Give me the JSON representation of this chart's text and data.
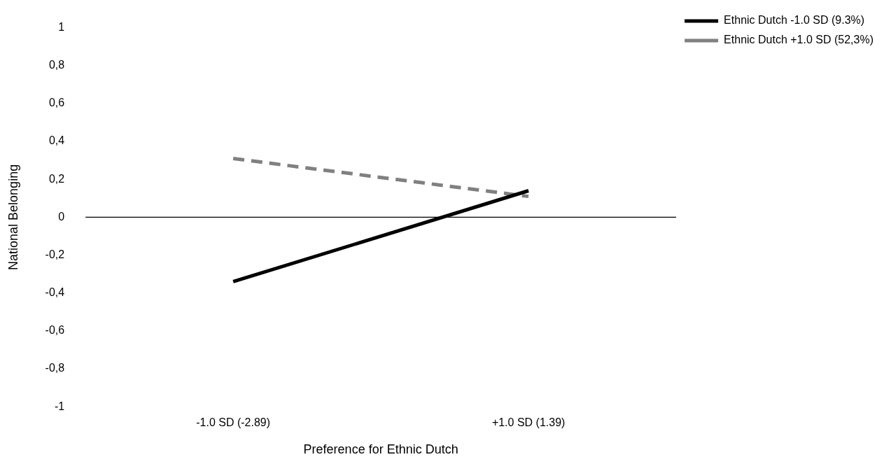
{
  "chart_data": {
    "type": "line",
    "xlabel": "Preference for Ethnic Dutch",
    "ylabel": "National Belonging",
    "categories": [
      "-1.0 SD (-2.89)",
      "+1.0 SD (1.39)"
    ],
    "series": [
      {
        "name": "Ethnic Dutch -1.0 SD (9.3%)",
        "color": "#000000",
        "values": [
          -0.34,
          0.14
        ],
        "line_style": "solid"
      },
      {
        "name": "Ethnic Dutch +1.0 SD (52,3%)",
        "color": "#808080",
        "values": [
          0.31,
          0.11
        ],
        "line_style": "dashed"
      }
    ],
    "ylim": [
      -1,
      1
    ],
    "yticks": [
      {
        "value": -1,
        "label": "-1"
      },
      {
        "value": -0.8,
        "label": "-0,8"
      },
      {
        "value": -0.6,
        "label": "-0,6"
      },
      {
        "value": -0.4,
        "label": "-0,4"
      },
      {
        "value": -0.2,
        "label": "-0,2"
      },
      {
        "value": 0,
        "label": "0"
      },
      {
        "value": 0.2,
        "label": "0,2"
      },
      {
        "value": 0.4,
        "label": "0,4"
      },
      {
        "value": 0.6,
        "label": "0,6"
      },
      {
        "value": 0.8,
        "label": "0,8"
      },
      {
        "value": 1,
        "label": "1"
      }
    ],
    "ref_lines": [
      {
        "axis": "y",
        "value": 0,
        "color": "#000000"
      }
    ],
    "grid": false,
    "legend": "top right",
    "marker": "none"
  }
}
